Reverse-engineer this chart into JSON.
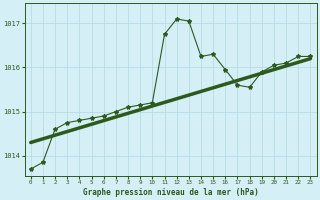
{
  "title": "Graphe pression niveau de la mer (hPa)",
  "bg_color": "#d4eff5",
  "line_color": "#2d5a1b",
  "grid_color": "#b8dde5",
  "x_ticks": [
    0,
    1,
    2,
    3,
    4,
    5,
    6,
    7,
    8,
    9,
    10,
    11,
    12,
    13,
    14,
    15,
    16,
    17,
    18,
    19,
    20,
    21,
    22,
    23
  ],
  "y_ticks": [
    1014,
    1015,
    1016,
    1017
  ],
  "ylim": [
    1013.55,
    1017.45
  ],
  "xlim": [
    -0.5,
    23.5
  ],
  "series1_x": [
    0,
    1,
    2,
    3,
    4,
    5,
    6,
    7,
    8,
    9,
    10,
    11,
    12,
    13,
    14,
    15,
    16,
    17,
    18,
    19,
    20,
    21,
    22,
    23
  ],
  "series1_y": [
    1013.7,
    1013.85,
    1014.6,
    1014.75,
    1014.8,
    1014.85,
    1014.9,
    1015.0,
    1015.1,
    1015.15,
    1015.2,
    1016.75,
    1017.1,
    1017.05,
    1016.25,
    1016.3,
    1015.95,
    1015.6,
    1015.55,
    1015.9,
    1016.05,
    1016.1,
    1016.25,
    1016.25
  ],
  "series2_x": [
    0,
    23
  ],
  "series2_y": [
    1014.3,
    1016.2
  ]
}
